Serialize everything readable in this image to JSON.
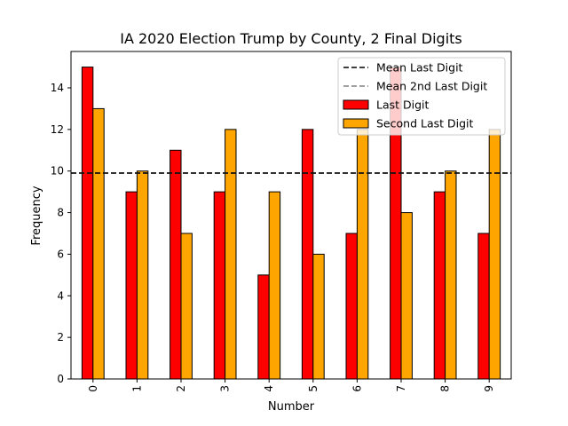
{
  "chart_data": {
    "type": "bar",
    "title": "IA 2020 Election Trump by County, 2 Final Digits",
    "xlabel": "Number",
    "ylabel": "Frequency",
    "categories": [
      "0",
      "1",
      "2",
      "3",
      "4",
      "5",
      "6",
      "7",
      "8",
      "9"
    ],
    "series": [
      {
        "name": "Last Digit",
        "color": "#ff0000",
        "values": [
          15,
          9,
          11,
          9,
          5,
          12,
          7,
          15,
          9,
          7
        ]
      },
      {
        "name": "Second Last Digit",
        "color": "#ffa500",
        "values": [
          13,
          10,
          7,
          12,
          9,
          6,
          12,
          8,
          10,
          12
        ]
      }
    ],
    "reference_lines": [
      {
        "name": "Mean Last Digit",
        "value": 9.9,
        "color": "#000000",
        "style": "dashed"
      },
      {
        "name": "Mean 2nd Last Digit",
        "value": 9.9,
        "color": "#808080",
        "style": "dashed"
      }
    ],
    "ylim": [
      0,
      15.75
    ],
    "yticks": [
      0,
      2,
      4,
      6,
      8,
      10,
      12,
      14
    ],
    "xtick_rotation": 90,
    "grid": false,
    "legend": "top-right"
  }
}
